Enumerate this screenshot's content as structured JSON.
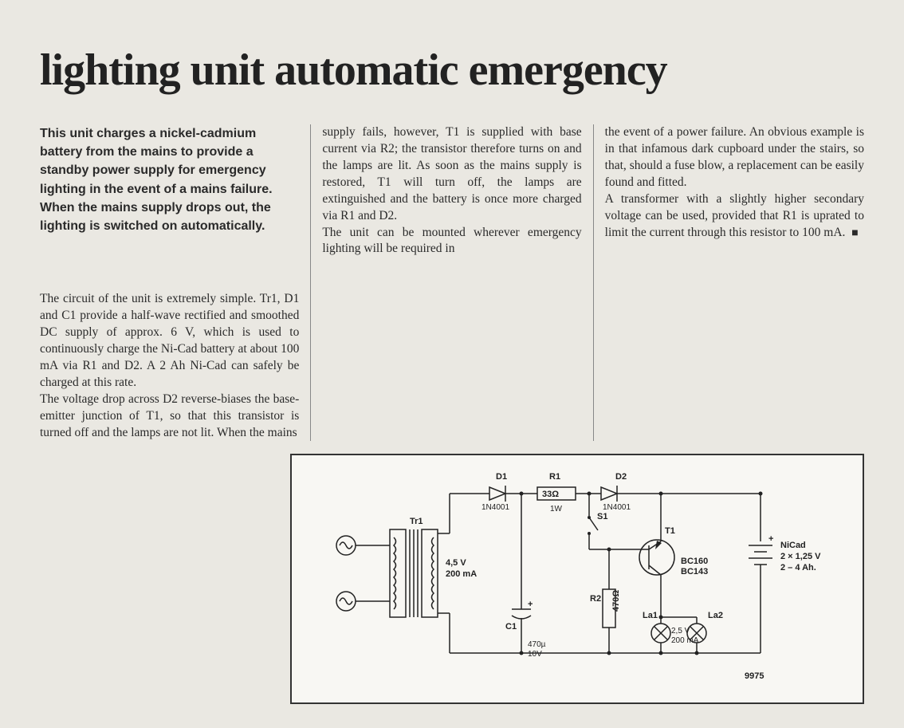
{
  "title": "lighting unit automatic emergency",
  "intro": "This unit charges a nickel-cadmium battery from the mains to provide a standby power supply for emergency lighting in the event of a mains failure. When the mains supply drops out, the lighting is switched on automatically.",
  "col1_body": "The circuit of the unit is extremely simple. Tr1, D1 and C1 provide a half-wave rectified and smoothed DC supply of approx. 6 V, which is used to continuously charge the Ni-Cad battery at about 100 mA via R1 and D2. A 2 Ah Ni-Cad can safely be charged at this rate.\nThe voltage drop across D2 reverse-biases the base-emitter junction of T1, so that this transistor is turned off and the lamps are not lit. When the mains",
  "col2_body": "supply fails, however, T1 is supplied with base current via R2; the transistor therefore turns on and the lamps are lit. As soon as the mains supply is restored, T1 will turn off, the lamps are extinguished and the battery is once more charged via R1 and D2.\nThe unit can be mounted wherever emergency lighting will be required in",
  "col3_body": "the event of a power failure. An obvious example is in that infamous dark cupboard under the stairs, so that, should a fuse blow, a replacement can be easily found and fitted.\nA transformer with a slightly higher secondary voltage can be used, provided that R1 is uprated to limit the current through this resistor to 100 mA.",
  "end_marker": "■",
  "schematic": {
    "figure_id": "9975",
    "components": {
      "D1": {
        "label": "D1",
        "type": "1N4001"
      },
      "D2": {
        "label": "D2",
        "type": "1N4001"
      },
      "R1": {
        "label": "R1",
        "value": "33Ω",
        "power": "1W"
      },
      "R2": {
        "label": "R2",
        "value": "470Ω"
      },
      "C1": {
        "label": "C1",
        "value": "470µ",
        "voltage": "10V"
      },
      "S1": {
        "label": "S1"
      },
      "T1": {
        "label": "T1",
        "types": "BC160\nBC143"
      },
      "Tr1": {
        "label": "Tr1",
        "sec": "4,5 V",
        "current": "200 mA"
      },
      "La1": {
        "label": "La1"
      },
      "La2": {
        "label": "La2"
      },
      "lamp_spec": {
        "v": "2,5 V",
        "i": "200 mA"
      },
      "battery": {
        "label": "NiCad",
        "cells": "2 × 1,25 V",
        "cap": "2 – 4 Ah."
      }
    },
    "colors": {
      "wire": "#222222",
      "bg": "#f8f7f3",
      "border": "#333333"
    }
  }
}
